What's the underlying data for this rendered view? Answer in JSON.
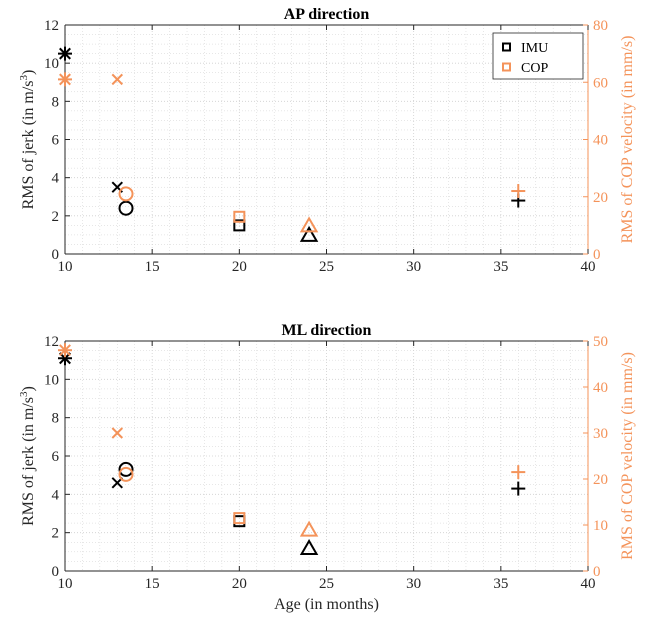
{
  "colors": {
    "imu": "#000000",
    "cop": "#F4935A",
    "grid": "#cfcfcf"
  },
  "legend": {
    "placement": "top-right",
    "entries": [
      "IMU",
      "COP"
    ]
  },
  "chart_data": [
    {
      "type": "scatter",
      "title": "AP direction",
      "xlabel": "",
      "ylabel": "RMS of jerk (in m/s",
      "ylabel_sup": "3",
      "ylabel_end": ")",
      "y2label": "RMS of COP velocity (in mm/s)",
      "xlim": [
        10,
        40
      ],
      "ylim": [
        0,
        12
      ],
      "y2lim": [
        0,
        80
      ],
      "xticks": [
        "10",
        "15",
        "20",
        "25",
        "30",
        "35",
        "40"
      ],
      "yticks": [
        "0",
        "2",
        "4",
        "6",
        "8",
        "10",
        "12"
      ],
      "y2ticks": [
        "0",
        "20",
        "40",
        "60",
        "80"
      ],
      "grid": true,
      "series": [
        {
          "name": "IMU",
          "axis": "left",
          "points": [
            {
              "x": 10,
              "y": 10.5,
              "marker": "asterisk"
            },
            {
              "x": 13,
              "y": 3.5,
              "marker": "x"
            },
            {
              "x": 13.5,
              "y": 2.4,
              "marker": "circle"
            },
            {
              "x": 20,
              "y": 1.5,
              "marker": "square"
            },
            {
              "x": 24,
              "y": 1.0,
              "marker": "triangle"
            },
            {
              "x": 36,
              "y": 2.8,
              "marker": "plus"
            }
          ]
        },
        {
          "name": "COP",
          "axis": "right",
          "points": [
            {
              "x": 10,
              "y": 61,
              "marker": "asterisk"
            },
            {
              "x": 13,
              "y": 61,
              "marker": "x"
            },
            {
              "x": 13.5,
              "y": 21,
              "marker": "circle"
            },
            {
              "x": 20,
              "y": 13,
              "marker": "square"
            },
            {
              "x": 24,
              "y": 10,
              "marker": "triangle"
            },
            {
              "x": 36,
              "y": 22,
              "marker": "plus"
            }
          ]
        }
      ]
    },
    {
      "type": "scatter",
      "title": "ML direction",
      "xlabel": "Age (in months)",
      "ylabel": "RMS of jerk (in m/s",
      "ylabel_sup": "3",
      "ylabel_end": ")",
      "y2label": "RMS of COP velocity (in mm/s)",
      "xlim": [
        10,
        40
      ],
      "ylim": [
        0,
        12
      ],
      "y2lim": [
        0,
        50
      ],
      "xticks": [
        "10",
        "15",
        "20",
        "25",
        "30",
        "35",
        "40"
      ],
      "yticks": [
        "0",
        "2",
        "4",
        "6",
        "8",
        "10",
        "12"
      ],
      "y2ticks": [
        "0",
        "10",
        "20",
        "30",
        "40",
        "50"
      ],
      "grid": true,
      "series": [
        {
          "name": "IMU",
          "axis": "left",
          "points": [
            {
              "x": 10,
              "y": 11.1,
              "marker": "asterisk"
            },
            {
              "x": 13,
              "y": 4.6,
              "marker": "x"
            },
            {
              "x": 13.5,
              "y": 5.3,
              "marker": "circle"
            },
            {
              "x": 20,
              "y": 2.6,
              "marker": "square"
            },
            {
              "x": 24,
              "y": 1.2,
              "marker": "triangle"
            },
            {
              "x": 36,
              "y": 4.3,
              "marker": "plus"
            }
          ]
        },
        {
          "name": "COP",
          "axis": "right",
          "points": [
            {
              "x": 10,
              "y": 48,
              "marker": "asterisk"
            },
            {
              "x": 13,
              "y": 30,
              "marker": "x"
            },
            {
              "x": 13.5,
              "y": 21,
              "marker": "circle"
            },
            {
              "x": 20,
              "y": 11.5,
              "marker": "square"
            },
            {
              "x": 24,
              "y": 9,
              "marker": "triangle"
            },
            {
              "x": 36,
              "y": 21.5,
              "marker": "plus"
            }
          ]
        }
      ]
    }
  ]
}
